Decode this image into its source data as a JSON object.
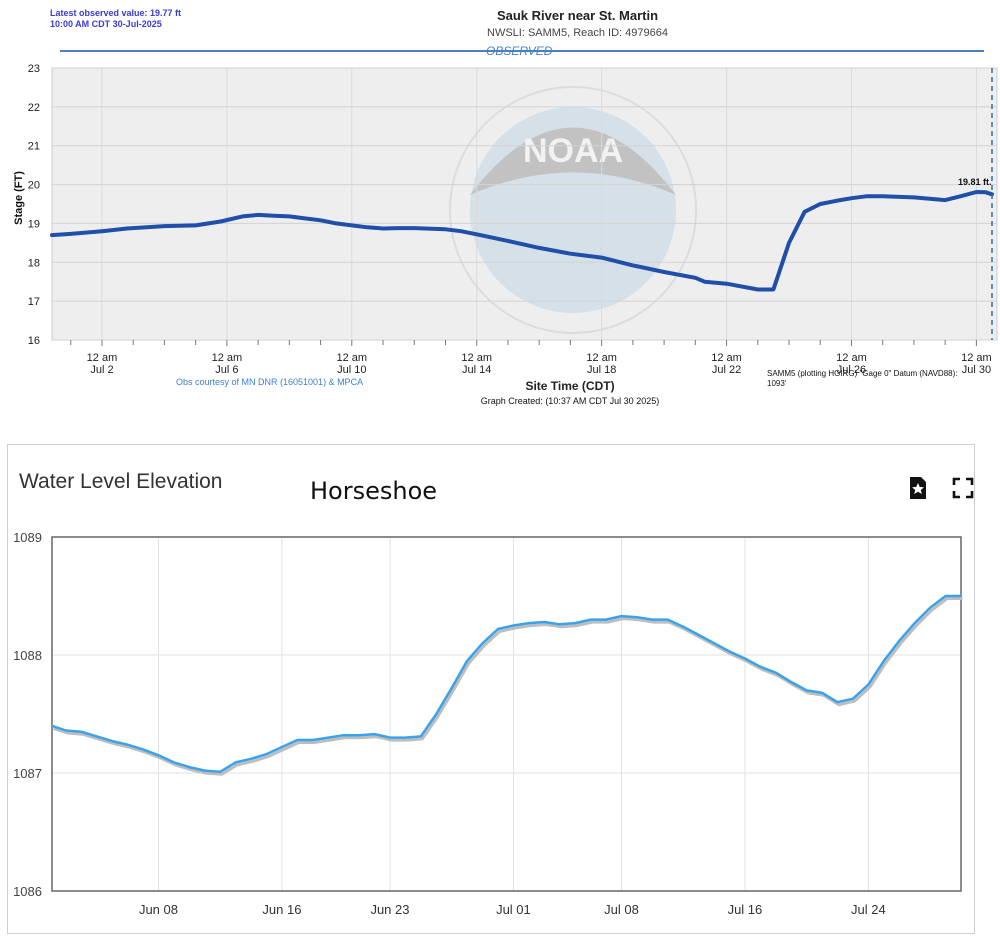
{
  "top_chart": {
    "latest_line1": "Latest observed value: 19.77 ft",
    "latest_line2": "10:00 AM CDT 30-Jul-2025",
    "title": "Sauk River near St. Martin",
    "subtitle": "NWSLI: SAMM5, Reach ID: 4979664",
    "observed_label": "OBSERVED",
    "courtesy": "Obs courtesy of MN DNR (16051001) & MPCA",
    "datum_line1": "SAMM5 (plotting HGIRG) \"Gage 0\" Datum (NAVD88):",
    "datum_line2": "1093'",
    "graph_created": "Graph Created: (10:37 AM CDT Jul 30 2025)",
    "last_value_label": "19.81 ft.",
    "watermark_text": "NOAA",
    "colors": {
      "line": "#1f4fa8",
      "plot_bg": "#eeeeee",
      "observed": "#4a7fc0"
    }
  },
  "bottom_chart": {
    "title": "Water Level Elevation",
    "site_name": "Horseshoe",
    "icons": [
      "download-pdf-icon",
      "fullscreen-icon"
    ],
    "colors": {
      "line": "#39a2ec"
    }
  },
  "chart_data": [
    {
      "type": "line",
      "title": "Sauk River near St. Martin",
      "xlabel": "Site Time (CDT)",
      "ylabel": "Stage (FT)",
      "ylim": [
        16,
        23
      ],
      "y_ticks": [
        16,
        17,
        18,
        19,
        20,
        21,
        22,
        23
      ],
      "x_ticks": [
        {
          "pos": 2,
          "line1": "12 am",
          "line2": "Jul 2"
        },
        {
          "pos": 6,
          "line1": "12 am",
          "line2": "Jul 6"
        },
        {
          "pos": 10,
          "line1": "12 am",
          "line2": "Jul 10"
        },
        {
          "pos": 14,
          "line1": "12 am",
          "line2": "Jul 14"
        },
        {
          "pos": 18,
          "line1": "12 am",
          "line2": "Jul 18"
        },
        {
          "pos": 22,
          "line1": "12 am",
          "line2": "Jul 22"
        },
        {
          "pos": 26,
          "line1": "12 am",
          "line2": "Jul 26"
        },
        {
          "pos": 30,
          "line1": "12 am",
          "line2": "Jul 30"
        }
      ],
      "xlim": [
        0.4,
        30.5
      ],
      "grid": true,
      "series": [
        {
          "x": [
            0.4,
            1.0,
            2.0,
            2.8,
            4.0,
            5.0,
            5.8,
            6.5,
            7.0,
            7.5,
            8.0,
            8.5,
            9.0,
            9.5,
            10.0,
            10.5,
            11.0,
            11.5,
            12.0,
            13.0,
            13.5,
            14.0,
            15.0,
            16.0,
            17.0,
            18.0,
            19.0,
            20.0,
            21.0,
            21.3,
            22.0,
            23.0,
            23.5,
            24.0,
            24.5,
            25.0,
            25.5,
            26.0,
            26.5,
            27.0,
            28.0,
            29.0,
            29.5,
            30.0,
            30.3,
            30.5
          ],
          "y": [
            18.7,
            18.73,
            18.8,
            18.87,
            18.93,
            18.95,
            19.05,
            19.18,
            19.22,
            19.2,
            19.18,
            19.13,
            19.08,
            19.0,
            18.95,
            18.9,
            18.87,
            18.88,
            18.88,
            18.85,
            18.8,
            18.72,
            18.55,
            18.37,
            18.22,
            18.12,
            17.92,
            17.75,
            17.6,
            17.5,
            17.45,
            17.3,
            17.3,
            18.5,
            19.3,
            19.5,
            19.58,
            19.65,
            19.7,
            19.7,
            19.67,
            19.6,
            19.7,
            19.81,
            19.8,
            19.75
          ]
        }
      ]
    },
    {
      "type": "line",
      "title": "Water Level Elevation",
      "subtitle": "Horseshoe",
      "ylim": [
        1086,
        1089
      ],
      "y_ticks": [
        1086,
        1087,
        1088,
        1089
      ],
      "x_ticks": [
        {
          "pos": 8,
          "label": "Jun 08"
        },
        {
          "pos": 16,
          "label": "Jun 16"
        },
        {
          "pos": 23,
          "label": "Jun 23"
        },
        {
          "pos": 31,
          "label": "Jul 01"
        },
        {
          "pos": 38,
          "label": "Jul 08"
        },
        {
          "pos": 46,
          "label": "Jul 16"
        },
        {
          "pos": 54,
          "label": "Jul 24"
        }
      ],
      "xlim": [
        1.1,
        60.0
      ],
      "grid": true,
      "series": [
        {
          "x": [
            1.1,
            2.0,
            3.0,
            4.0,
            5.0,
            6.0,
            7.0,
            8.0,
            9.0,
            10.0,
            11.0,
            12.0,
            13.0,
            14.0,
            15.0,
            16.0,
            17.0,
            18.0,
            19.0,
            20.0,
            21.0,
            22.0,
            23.0,
            24.0,
            25.0,
            26.0,
            27.0,
            28.0,
            29.0,
            30.0,
            31.0,
            32.0,
            33.0,
            34.0,
            35.0,
            36.0,
            37.0,
            38.0,
            39.0,
            40.0,
            41.0,
            42.0,
            43.0,
            44.0,
            45.0,
            46.0,
            47.0,
            48.0,
            49.0,
            50.0,
            51.0,
            52.0,
            53.0,
            54.0,
            55.0,
            56.0,
            57.0,
            58.0,
            59.0,
            60.0
          ],
          "y": [
            1087.4,
            1087.36,
            1087.35,
            1087.31,
            1087.27,
            1087.24,
            1087.2,
            1087.15,
            1087.09,
            1087.05,
            1087.02,
            1087.01,
            1087.09,
            1087.12,
            1087.16,
            1087.22,
            1087.28,
            1087.28,
            1087.3,
            1087.32,
            1087.32,
            1087.33,
            1087.3,
            1087.3,
            1087.31,
            1087.5,
            1087.72,
            1087.95,
            1088.1,
            1088.22,
            1088.25,
            1088.27,
            1088.28,
            1088.26,
            1088.27,
            1088.3,
            1088.3,
            1088.33,
            1088.32,
            1088.3,
            1088.3,
            1088.24,
            1088.17,
            1088.1,
            1088.03,
            1087.97,
            1087.9,
            1087.85,
            1087.77,
            1087.7,
            1087.68,
            1087.6,
            1087.63,
            1087.75,
            1087.95,
            1088.12,
            1088.27,
            1088.4,
            1088.5,
            1088.5
          ]
        }
      ]
    }
  ]
}
